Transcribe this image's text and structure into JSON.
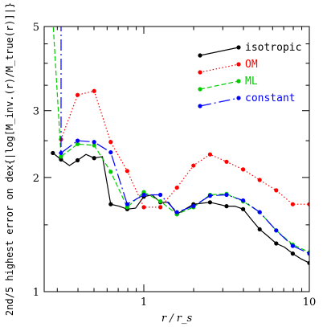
{
  "chart_data": {
    "type": "line",
    "xlabel": "r / r_s",
    "ylabel": "2nd/5 highest error on dex{|log[M_inv.(r)/M_true(r)]|}",
    "x_scale": "log",
    "y_scale": "log",
    "xlim": [
      0.25,
      10
    ],
    "ylim": [
      1,
      5
    ],
    "x_ticks": [
      {
        "value": 1,
        "label": "1"
      },
      {
        "value": 10,
        "label": "10"
      }
    ],
    "y_ticks": [
      {
        "value": 1,
        "label": "1"
      },
      {
        "value": 2,
        "label": "2"
      },
      {
        "value": 3,
        "label": "3"
      },
      {
        "value": 5,
        "label": "5"
      }
    ],
    "grid": false,
    "legend_position": "top-right",
    "series": [
      {
        "name": "isotropic",
        "color": "#000000",
        "dash": "solid",
        "x": [
          0.282,
          0.316,
          0.355,
          0.398,
          0.447,
          0.501,
          0.562,
          0.631,
          0.708,
          0.794,
          0.891,
          1.0,
          1.122,
          1.259,
          1.413,
          1.585,
          1.778,
          1.995,
          2.239,
          2.512,
          2.818,
          3.162,
          3.548,
          3.981,
          4.467,
          5.012,
          5.623,
          6.31,
          7.079,
          7.943,
          8.913,
          10.0
        ],
        "y": [
          2.32,
          2.23,
          2.15,
          2.22,
          2.3,
          2.25,
          2.27,
          1.7,
          1.68,
          1.65,
          1.66,
          1.78,
          1.8,
          1.72,
          1.72,
          1.6,
          1.65,
          1.7,
          1.71,
          1.72,
          1.7,
          1.68,
          1.68,
          1.65,
          1.55,
          1.46,
          1.4,
          1.34,
          1.31,
          1.26,
          1.22,
          1.19
        ],
        "markers_at": [
          0.282,
          0.316,
          0.398,
          0.501,
          0.631,
          0.794,
          1.0,
          1.259,
          1.585,
          1.995,
          2.512,
          3.162,
          3.981,
          5.012,
          6.31,
          7.943,
          10.0
        ]
      },
      {
        "name": "OM",
        "color": "#ff0000",
        "dash": "dotted",
        "x": [
          0.316,
          0.398,
          0.501,
          0.631,
          0.794,
          1.0,
          1.259,
          1.585,
          1.995,
          2.512,
          3.162,
          3.981,
          5.012,
          6.31,
          7.943,
          10.0
        ],
        "y": [
          2.52,
          3.3,
          3.38,
          2.48,
          2.08,
          1.67,
          1.67,
          1.88,
          2.15,
          2.3,
          2.2,
          2.1,
          1.97,
          1.85,
          1.7,
          1.7
        ],
        "markers_at": [
          0.316,
          0.398,
          0.501,
          0.631,
          0.794,
          1.0,
          1.259,
          1.585,
          1.995,
          2.512,
          3.162,
          3.981,
          5.012,
          6.31,
          7.943,
          10.0
        ]
      },
      {
        "name": "ML",
        "color": "#00cc00",
        "dash": "dashed",
        "x": [
          0.282,
          0.316,
          0.398,
          0.501,
          0.631,
          0.794,
          1.0,
          1.259,
          1.585,
          1.995,
          2.512,
          3.162,
          3.981,
          5.012,
          6.31,
          7.943,
          10.0
        ],
        "y": [
          5.2,
          2.27,
          2.45,
          2.43,
          2.07,
          1.67,
          1.83,
          1.73,
          1.6,
          1.67,
          1.8,
          1.81,
          1.73,
          1.62,
          1.45,
          1.33,
          1.27
        ],
        "markers_at": [
          0.316,
          0.398,
          0.501,
          0.631,
          0.794,
          1.0,
          1.259,
          1.585,
          1.995,
          2.512,
          3.162,
          3.981,
          5.012,
          6.31,
          7.943,
          10.0
        ]
      },
      {
        "name": "constant",
        "color": "#0000ff",
        "dash": "longdash",
        "x": [
          0.316,
          0.316,
          0.398,
          0.501,
          0.631,
          0.794,
          1.0,
          1.259,
          1.585,
          1.995,
          2.512,
          3.162,
          3.981,
          5.012,
          6.31,
          7.943,
          10.0
        ],
        "y": [
          5.2,
          2.32,
          2.5,
          2.48,
          2.33,
          1.7,
          1.8,
          1.8,
          1.62,
          1.68,
          1.79,
          1.8,
          1.74,
          1.62,
          1.45,
          1.32,
          1.26
        ],
        "markers_at": [
          0.316,
          0.398,
          0.501,
          0.631,
          0.794,
          1.0,
          1.259,
          1.585,
          1.995,
          2.512,
          3.162,
          3.981,
          5.012,
          6.31,
          7.943,
          10.0
        ]
      }
    ]
  }
}
